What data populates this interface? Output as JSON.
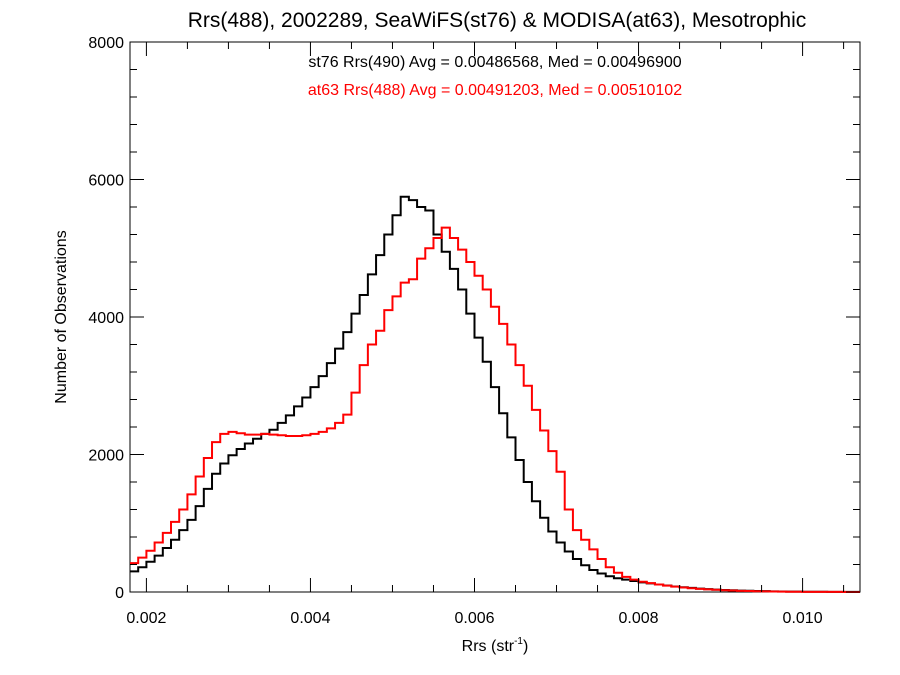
{
  "chart_data": {
    "type": "line",
    "title": "Rrs(488), 2002289, SeaWiFS(st76) & MODISA(at63), Mesotrophic",
    "xlabel": "Rrs (str",
    "xlabel_sup": "-1",
    "xlabel_close": ")",
    "ylabel": "Number of Observations",
    "xlim": [
      0.0018,
      0.0107
    ],
    "ylim": [
      0,
      8000
    ],
    "grid": false,
    "step": true,
    "x_ticks": [
      0.002,
      0.004,
      0.006,
      0.008,
      0.01
    ],
    "x_tick_labels": [
      "0.002",
      "0.004",
      "0.006",
      "0.008",
      "0.010"
    ],
    "y_ticks": [
      0,
      2000,
      4000,
      6000,
      8000
    ],
    "y_tick_labels": [
      "0",
      "2000",
      "4000",
      "6000",
      "8000"
    ],
    "annotations": [
      {
        "text": "st76 Rrs(490) Avg = 0.00486568, Med = 0.00496900",
        "color": "#000000"
      },
      {
        "text": "at63 Rrs(488) Avg = 0.00491203, Med = 0.00510102",
        "color": "#ff0000"
      }
    ],
    "series": [
      {
        "color": "#000000",
        "x": [
          0.0018,
          0.0019,
          0.002,
          0.0021,
          0.0022,
          0.0023,
          0.0024,
          0.0025,
          0.0026,
          0.0027,
          0.0028,
          0.0029,
          0.003,
          0.0031,
          0.0032,
          0.0033,
          0.0034,
          0.0035,
          0.0036,
          0.0037,
          0.0038,
          0.0039,
          0.004,
          0.0041,
          0.0042,
          0.0043,
          0.0044,
          0.0045,
          0.0046,
          0.0047,
          0.0048,
          0.0049,
          0.005,
          0.0051,
          0.0052,
          0.0053,
          0.0054,
          0.0055,
          0.0056,
          0.0057,
          0.0058,
          0.0059,
          0.006,
          0.0061,
          0.0062,
          0.0063,
          0.0064,
          0.0065,
          0.0066,
          0.0067,
          0.0068,
          0.0069,
          0.007,
          0.0071,
          0.0072,
          0.0073,
          0.0074,
          0.0075,
          0.0076,
          0.0077,
          0.0078,
          0.0079,
          0.008,
          0.0081,
          0.0082,
          0.0083,
          0.0084,
          0.0085,
          0.0086,
          0.0087,
          0.0088,
          0.0089,
          0.009,
          0.0091,
          0.0092,
          0.0093,
          0.0094,
          0.0095,
          0.0096,
          0.0097,
          0.0098,
          0.0099,
          0.01,
          0.0101,
          0.0102,
          0.0103,
          0.0104,
          0.0105,
          0.0106
        ],
        "values": [
          300,
          360,
          440,
          530,
          640,
          760,
          900,
          1050,
          1250,
          1500,
          1720,
          1870,
          1990,
          2080,
          2160,
          2230,
          2300,
          2360,
          2460,
          2570,
          2700,
          2830,
          2980,
          3140,
          3330,
          3540,
          3780,
          4050,
          4320,
          4620,
          4900,
          5200,
          5480,
          5750,
          5700,
          5600,
          5550,
          5200,
          4950,
          4700,
          4400,
          4050,
          3700,
          3350,
          2980,
          2600,
          2250,
          1920,
          1600,
          1320,
          1080,
          880,
          720,
          590,
          480,
          390,
          320,
          270,
          230,
          200,
          180,
          160,
          140,
          125,
          110,
          95,
          80,
          70,
          60,
          50,
          42,
          35,
          30,
          25,
          20,
          18,
          15,
          12,
          10,
          8,
          6,
          5,
          4,
          3,
          3,
          2,
          2,
          1,
          1
        ]
      },
      {
        "color": "#ff0000",
        "x": [
          0.0018,
          0.0019,
          0.002,
          0.0021,
          0.0022,
          0.0023,
          0.0024,
          0.0025,
          0.0026,
          0.0027,
          0.0028,
          0.0029,
          0.003,
          0.0031,
          0.0032,
          0.0033,
          0.0034,
          0.0035,
          0.0036,
          0.0037,
          0.0038,
          0.0039,
          0.004,
          0.0041,
          0.0042,
          0.0043,
          0.0044,
          0.0045,
          0.0046,
          0.0047,
          0.0048,
          0.0049,
          0.005,
          0.0051,
          0.0052,
          0.0053,
          0.0054,
          0.0055,
          0.0056,
          0.0057,
          0.0058,
          0.0059,
          0.006,
          0.0061,
          0.0062,
          0.0063,
          0.0064,
          0.0065,
          0.0066,
          0.0067,
          0.0068,
          0.0069,
          0.007,
          0.0071,
          0.0072,
          0.0073,
          0.0074,
          0.0075,
          0.0076,
          0.0077,
          0.0078,
          0.0079,
          0.008,
          0.0081,
          0.0082,
          0.0083,
          0.0084,
          0.0085,
          0.0086,
          0.0087,
          0.0088,
          0.0089,
          0.009,
          0.0091,
          0.0092,
          0.0093,
          0.0094,
          0.0095,
          0.0096,
          0.0097,
          0.0098,
          0.0099,
          0.01,
          0.0101,
          0.0102,
          0.0103,
          0.0104,
          0.0105,
          0.0106
        ],
        "values": [
          420,
          500,
          600,
          720,
          860,
          1020,
          1200,
          1420,
          1680,
          1950,
          2180,
          2300,
          2330,
          2310,
          2290,
          2290,
          2300,
          2290,
          2280,
          2270,
          2270,
          2280,
          2300,
          2330,
          2380,
          2460,
          2580,
          2900,
          3300,
          3600,
          3800,
          4100,
          4300,
          4500,
          4550,
          4850,
          5000,
          5150,
          5300,
          5150,
          4980,
          4800,
          4600,
          4400,
          4150,
          3900,
          3600,
          3300,
          3000,
          2650,
          2350,
          2050,
          1750,
          1200,
          900,
          760,
          620,
          480,
          360,
          280,
          220,
          180,
          150,
          130,
          110,
          92,
          78,
          66,
          55,
          46,
          38,
          32,
          26,
          21,
          17,
          14,
          11,
          9,
          7,
          5,
          4,
          3,
          2,
          2,
          1,
          1,
          1,
          0,
          0
        ]
      }
    ]
  }
}
